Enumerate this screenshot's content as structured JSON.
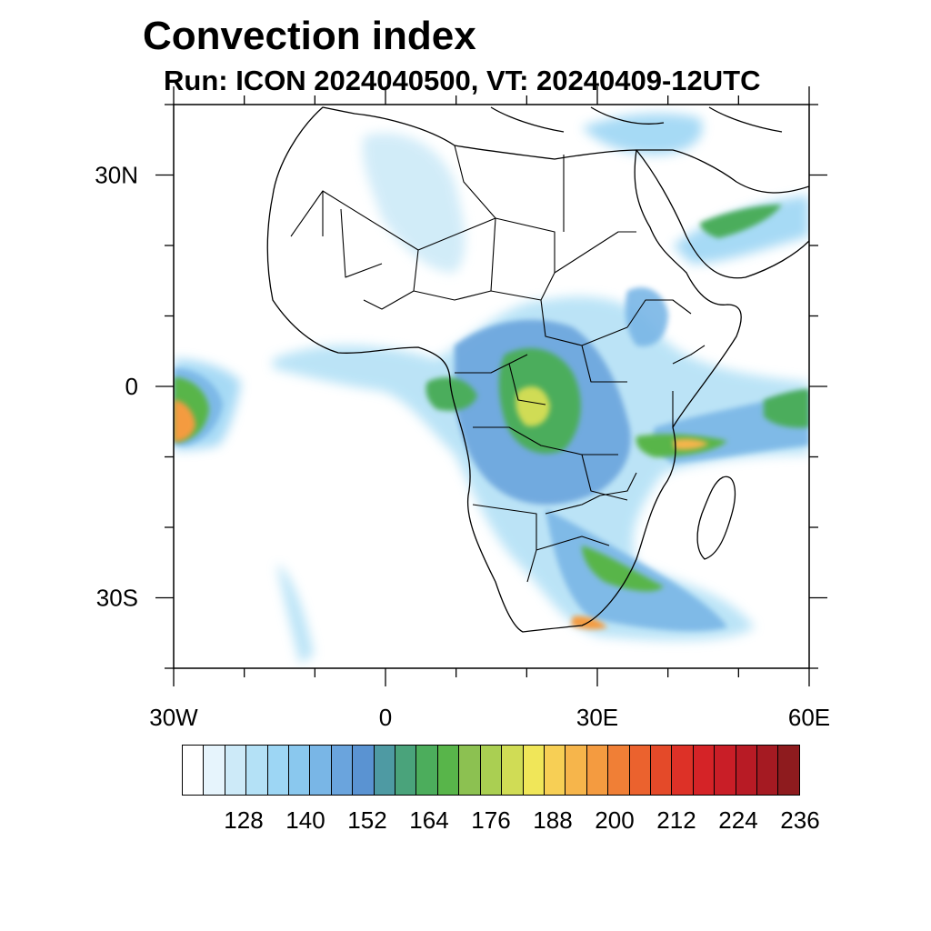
{
  "title": "Convection index",
  "subtitle": "Run: ICON 2024040500,  VT: 20240409-12UTC",
  "map": {
    "lon_range": [
      -30,
      60
    ],
    "lat_range": [
      -40,
      40
    ],
    "lon_ticks": [
      {
        "value": -30,
        "label": "30W"
      },
      {
        "value": 0,
        "label": "0"
      },
      {
        "value": 30,
        "label": "30E"
      },
      {
        "value": 60,
        "label": "60E"
      }
    ],
    "lat_ticks": [
      {
        "value": 30,
        "label": "30N"
      },
      {
        "value": 0,
        "label": "0"
      },
      {
        "value": -30,
        "label": "30S"
      }
    ],
    "field": "convection index",
    "region_shown": "Africa and surrounding oceans"
  },
  "colorbar": {
    "colors": [
      "#ffffff",
      "#e6f4fc",
      "#cdeaf8",
      "#b4e1f6",
      "#9dd6f4",
      "#8ac8ee",
      "#79b6e6",
      "#6aa4dd",
      "#5a93d2",
      "#4e9aa3",
      "#4aa37b",
      "#4cad5c",
      "#58b54a",
      "#8cc151",
      "#aacf52",
      "#d0dc55",
      "#f0e659",
      "#f7cf55",
      "#f6b54b",
      "#f49b40",
      "#f07f36",
      "#eb622e",
      "#e44a29",
      "#dd3127",
      "#d52327",
      "#c91e27",
      "#b81b25",
      "#a51a22",
      "#8e1b1e"
    ],
    "labels": [
      {
        "index": 3,
        "text": "128"
      },
      {
        "index": 6,
        "text": "140"
      },
      {
        "index": 9,
        "text": "152"
      },
      {
        "index": 12,
        "text": "164"
      },
      {
        "index": 15,
        "text": "176"
      },
      {
        "index": 18,
        "text": "188"
      },
      {
        "index": 21,
        "text": "200"
      },
      {
        "index": 24,
        "text": "212"
      },
      {
        "index": 27,
        "text": "224"
      },
      {
        "index": 30,
        "text": "236"
      }
    ]
  }
}
